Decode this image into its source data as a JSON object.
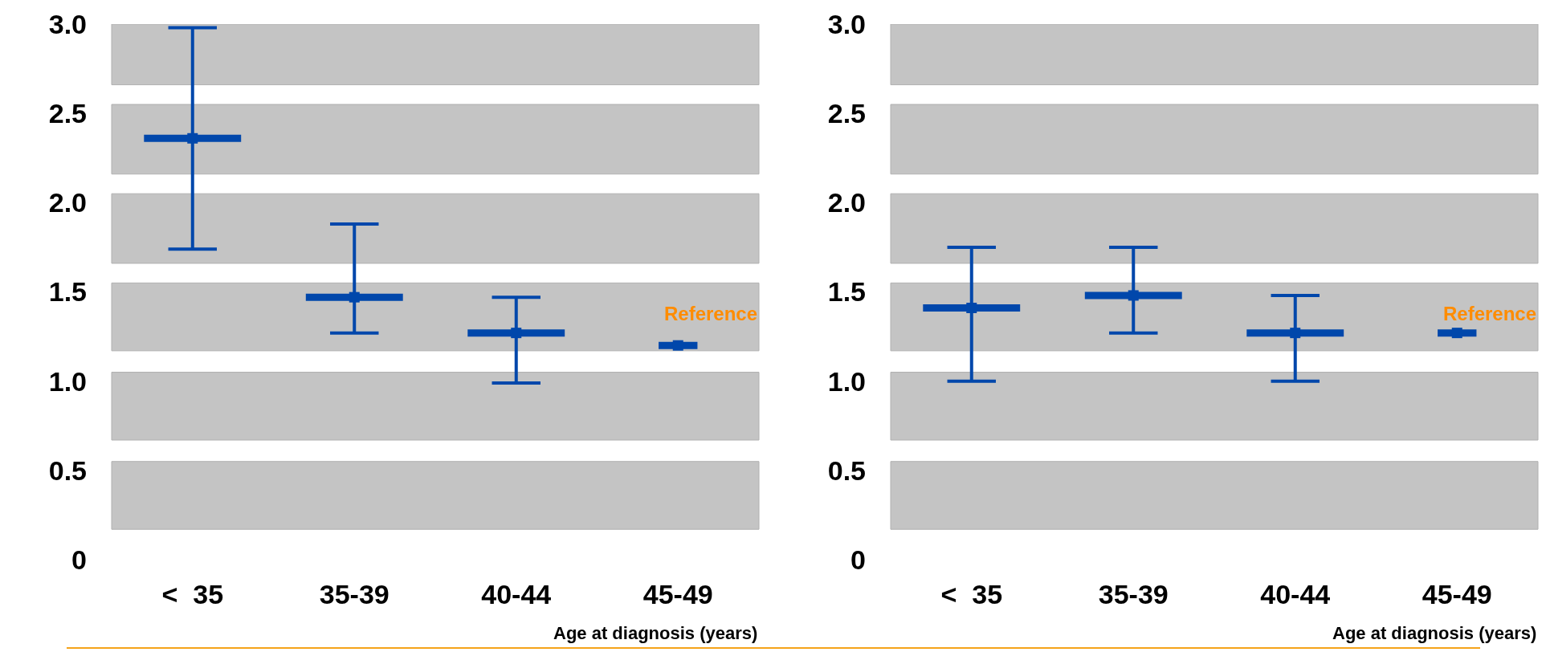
{
  "chart_data": [
    {
      "type": "scatter",
      "categories": [
        "<  35",
        "35-39",
        "40-44",
        "45-49"
      ],
      "xlabel": "Age at diagnosis (years)",
      "series": [
        {
          "color": "#0047ab",
          "values": [
            2.36,
            1.47,
            1.27,
            1.2
          ],
          "errors": [
            [
              1.74,
              2.98
            ],
            [
              1.27,
              1.88
            ],
            [
              0.99,
              1.47
            ],
            null
          ]
        }
      ],
      "ylim": [
        0,
        3.0
      ],
      "yticks": [
        0,
        0.5,
        {
          "value": 1,
          "label": "1.0"
        },
        1.5,
        {
          "value": 2,
          "label": "2.0"
        },
        2.5,
        {
          "value": 3,
          "label": "3.0"
        }
      ],
      "bands": [
        {
          "axis": "y",
          "from": 0.17,
          "to": 0.55,
          "color": "#c4c4c4"
        },
        {
          "axis": "y",
          "from": 0.67,
          "to": 1.05,
          "color": "#c4c4c4"
        },
        {
          "axis": "y",
          "from": 1.17,
          "to": 1.55,
          "color": "#c4c4c4"
        },
        {
          "axis": "y",
          "from": 1.66,
          "to": 2.05,
          "color": "#c4c4c4"
        },
        {
          "axis": "y",
          "from": 2.16,
          "to": 2.55,
          "color": "#c4c4c4"
        },
        {
          "axis": "y",
          "from": 2.66,
          "to": 3.0,
          "color": "#c4c4c4"
        }
      ],
      "annotations": [
        "Reference"
      ]
    },
    {
      "type": "scatter",
      "categories": [
        "<  35",
        "35-39",
        "40-44",
        "45-49"
      ],
      "xlabel": "Age at diagnosis (years)",
      "series": [
        {
          "color": "#0047ab",
          "values": [
            1.41,
            1.48,
            1.27,
            1.27
          ],
          "errors": [
            [
              1.0,
              1.75
            ],
            [
              1.27,
              1.75
            ],
            [
              1.0,
              1.48
            ],
            null
          ]
        }
      ],
      "ylim": [
        0,
        3.0
      ],
      "yticks": [
        0,
        0.5,
        {
          "value": 1,
          "label": "1.0"
        },
        1.5,
        {
          "value": 2,
          "label": "2.0"
        },
        2.5,
        {
          "value": 3,
          "label": "3.0"
        }
      ],
      "bands": [
        {
          "axis": "y",
          "from": 0.17,
          "to": 0.55,
          "color": "#c4c4c4"
        },
        {
          "axis": "y",
          "from": 0.67,
          "to": 1.05,
          "color": "#c4c4c4"
        },
        {
          "axis": "y",
          "from": 1.17,
          "to": 1.55,
          "color": "#c4c4c4"
        },
        {
          "axis": "y",
          "from": 1.66,
          "to": 2.05,
          "color": "#c4c4c4"
        },
        {
          "axis": "y",
          "from": 2.16,
          "to": 2.55,
          "color": "#c4c4c4"
        },
        {
          "axis": "y",
          "from": 2.66,
          "to": 3.0,
          "color": "#c4c4c4"
        }
      ],
      "annotations": [
        "Reference"
      ]
    }
  ]
}
